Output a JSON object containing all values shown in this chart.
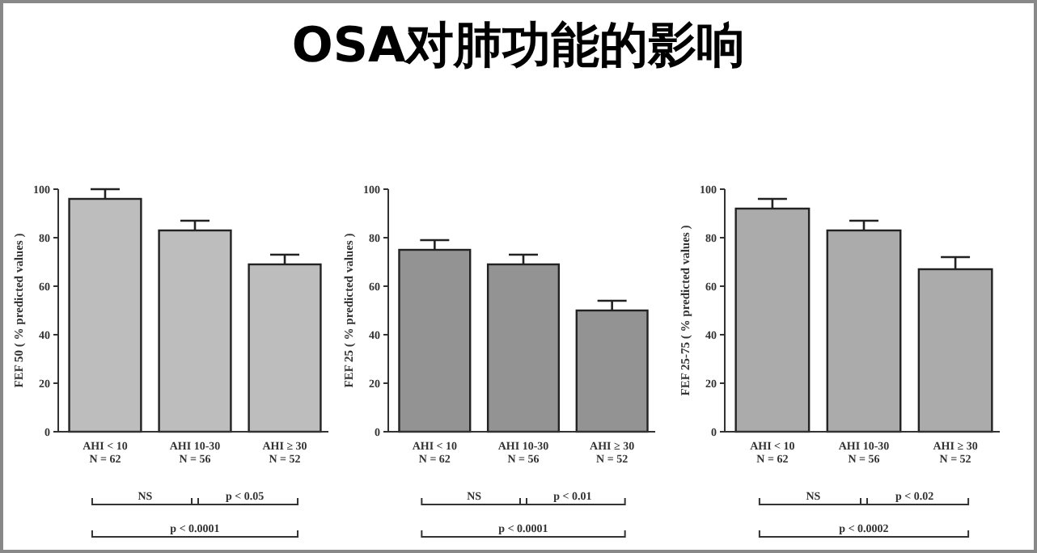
{
  "chart_data": [
    {
      "type": "other",
      "title": "OSA对肺功能的影响"
    },
    {
      "type": "bar",
      "ylabel": "FEF 50 ( % predicted values )",
      "categories": [
        "AHI < 10\nN = 62",
        "AHI 10-30\nN = 56",
        "AHI ≥ 30\nN = 52"
      ],
      "values": [
        96,
        83,
        69
      ],
      "errors": [
        [
          96,
          100
        ],
        [
          83,
          87
        ],
        [
          69,
          73
        ]
      ],
      "color": "#bdbdbd",
      "ylim": [
        0,
        100
      ],
      "yticks": [
        0,
        20,
        40,
        60,
        80,
        100
      ],
      "annotations": [
        "NS",
        "p < 0.05",
        "p < 0.0001"
      ]
    },
    {
      "type": "bar",
      "ylabel": "FEF 25 ( % predicted values )",
      "categories": [
        "AHI < 10\nN = 62",
        "AHI 10-30\nN = 56",
        "AHI ≥ 30\nN = 52"
      ],
      "values": [
        75,
        69,
        50
      ],
      "errors": [
        [
          75,
          79
        ],
        [
          69,
          73
        ],
        [
          50,
          54
        ]
      ],
      "color": "#939393",
      "ylim": [
        0,
        100
      ],
      "yticks": [
        0,
        20,
        40,
        60,
        80,
        100
      ],
      "annotations": [
        "NS",
        "p < 0.01",
        "p < 0.0001"
      ]
    },
    {
      "type": "bar",
      "ylabel": "FEF 25-75 ( % predicted values )",
      "categories": [
        "AHI < 10\nN = 62",
        "AHI 10-30\nN = 56",
        "AHI ≥ 30\nN = 52"
      ],
      "values": [
        92,
        83,
        67
      ],
      "errors": [
        [
          92,
          96
        ],
        [
          83,
          87
        ],
        [
          67,
          72
        ]
      ],
      "color": "#ababab",
      "ylim": [
        0,
        100
      ],
      "yticks": [
        0,
        20,
        40,
        60,
        80,
        100
      ],
      "annotations": [
        "NS",
        "p < 0.02",
        "p < 0.0002"
      ]
    }
  ]
}
